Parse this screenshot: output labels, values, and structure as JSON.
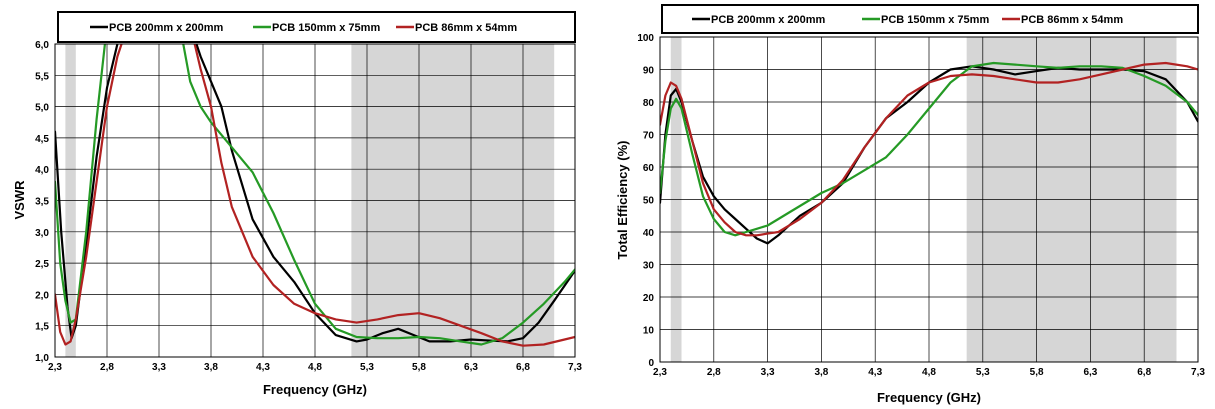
{
  "chart_data": [
    {
      "type": "line",
      "title": "",
      "xlabel": "Frequency (GHz)",
      "ylabel": "VSWR",
      "xlim": [
        2.3,
        7.3
      ],
      "ylim": [
        1.0,
        6.0
      ],
      "x_ticks": [
        2.3,
        2.8,
        3.3,
        3.8,
        4.3,
        4.8,
        5.3,
        5.8,
        6.3,
        6.8,
        7.3
      ],
      "x_tick_labels": [
        "2,3",
        "2,8",
        "3,3",
        "3,8",
        "4,3",
        "4,8",
        "5,3",
        "5,8",
        "6,3",
        "6,8",
        "7,3"
      ],
      "y_ticks": [
        1.0,
        1.5,
        2.0,
        2.5,
        3.0,
        3.5,
        4.0,
        4.5,
        5.0,
        5.5,
        6.0
      ],
      "y_tick_labels": [
        "1,0",
        "1,5",
        "2,0",
        "2,5",
        "3,0",
        "3,5",
        "4,0",
        "4,5",
        "5,0",
        "5,5",
        "6,0"
      ],
      "grid": true,
      "legend_position": "top",
      "shaded_bands": [
        [
          2.4,
          2.5
        ],
        [
          5.15,
          7.1
        ]
      ],
      "series": [
        {
          "name": "PCB 200mm x 200mm",
          "color": "#000000",
          "x": [
            2.3,
            2.36,
            2.42,
            2.46,
            2.5,
            2.6,
            2.7,
            2.8,
            2.9,
            3.0,
            3.6,
            3.7,
            3.8,
            3.9,
            4.0,
            4.2,
            4.4,
            4.6,
            4.8,
            5.0,
            5.2,
            5.3,
            5.45,
            5.6,
            5.75,
            5.9,
            6.1,
            6.3,
            6.5,
            6.65,
            6.8,
            6.95,
            7.1,
            7.3
          ],
          "y": [
            4.6,
            3.0,
            1.8,
            1.3,
            1.5,
            2.8,
            4.2,
            5.3,
            6.0,
            6.3,
            6.3,
            5.8,
            5.4,
            5.0,
            4.3,
            3.2,
            2.6,
            2.2,
            1.7,
            1.35,
            1.25,
            1.28,
            1.38,
            1.45,
            1.35,
            1.25,
            1.25,
            1.28,
            1.26,
            1.25,
            1.3,
            1.55,
            1.9,
            2.38
          ]
        },
        {
          "name": "PCB 150mm x 75mm",
          "color": "#259a25",
          "x": [
            2.3,
            2.35,
            2.4,
            2.45,
            2.5,
            2.6,
            2.7,
            2.8,
            3.5,
            3.6,
            3.7,
            3.8,
            3.9,
            4.0,
            4.2,
            4.4,
            4.6,
            4.8,
            5.0,
            5.2,
            5.4,
            5.6,
            5.8,
            6.0,
            6.2,
            6.4,
            6.6,
            6.8,
            7.0,
            7.2,
            7.3
          ],
          "y": [
            3.8,
            2.5,
            1.9,
            1.55,
            1.6,
            3.0,
            4.8,
            6.3,
            6.3,
            5.4,
            5.0,
            4.75,
            4.55,
            4.35,
            3.95,
            3.3,
            2.55,
            1.85,
            1.45,
            1.32,
            1.3,
            1.3,
            1.32,
            1.3,
            1.25,
            1.2,
            1.3,
            1.55,
            1.85,
            2.2,
            2.4
          ]
        },
        {
          "name": "PCB 86mm x 54mm",
          "color": "#b22222",
          "x": [
            2.3,
            2.35,
            2.4,
            2.45,
            2.5,
            2.6,
            2.7,
            2.8,
            2.9,
            3.0,
            3.6,
            3.7,
            3.8,
            3.9,
            4.0,
            4.2,
            4.4,
            4.6,
            4.8,
            5.0,
            5.2,
            5.4,
            5.6,
            5.8,
            6.0,
            6.2,
            6.4,
            6.6,
            6.8,
            7.0,
            7.2,
            7.3
          ],
          "y": [
            2.0,
            1.4,
            1.2,
            1.25,
            1.6,
            2.6,
            3.8,
            5.0,
            5.8,
            6.3,
            6.3,
            5.6,
            5.0,
            4.1,
            3.4,
            2.6,
            2.15,
            1.85,
            1.7,
            1.6,
            1.55,
            1.6,
            1.67,
            1.7,
            1.62,
            1.5,
            1.38,
            1.25,
            1.18,
            1.2,
            1.28,
            1.32
          ]
        }
      ]
    },
    {
      "type": "line",
      "title": "",
      "xlabel": "Frequency (GHz)",
      "ylabel": "Total  Efficiency (%)",
      "xlim": [
        2.3,
        7.3
      ],
      "ylim": [
        0,
        100
      ],
      "x_ticks": [
        2.3,
        2.8,
        3.3,
        3.8,
        4.3,
        4.8,
        5.3,
        5.8,
        6.3,
        6.8,
        7.3
      ],
      "x_tick_labels": [
        "2,3",
        "2,8",
        "3,3",
        "3,8",
        "4,3",
        "4,8",
        "5,3",
        "5,8",
        "6,3",
        "6,8",
        "7,3"
      ],
      "y_ticks": [
        0,
        10,
        20,
        30,
        40,
        50,
        60,
        70,
        80,
        90,
        100
      ],
      "y_tick_labels": [
        "0",
        "10",
        "20",
        "30",
        "40",
        "50",
        "60",
        "70",
        "80",
        "90",
        "100"
      ],
      "grid": true,
      "legend_position": "top",
      "shaded_bands": [
        [
          2.4,
          2.5
        ],
        [
          5.15,
          7.1
        ]
      ],
      "series": [
        {
          "name": "PCB 200mm x 200mm",
          "color": "#000000",
          "x": [
            2.3,
            2.35,
            2.4,
            2.45,
            2.5,
            2.6,
            2.7,
            2.8,
            2.9,
            3.0,
            3.1,
            3.2,
            3.3,
            3.4,
            3.5,
            3.6,
            3.8,
            4.0,
            4.2,
            4.4,
            4.6,
            4.8,
            5.0,
            5.2,
            5.4,
            5.6,
            5.8,
            6.0,
            6.2,
            6.4,
            6.6,
            6.8,
            7.0,
            7.2,
            7.3
          ],
          "y": [
            49,
            70,
            82,
            84,
            80,
            68,
            57,
            51,
            47,
            44,
            41,
            38,
            36.5,
            39,
            42,
            45,
            49,
            55,
            66,
            75,
            80,
            86,
            90,
            91,
            90,
            88.5,
            89.5,
            90.5,
            90,
            90,
            90,
            89.5,
            87,
            80,
            74
          ]
        },
        {
          "name": "PCB 150mm x 75mm",
          "color": "#259a25",
          "x": [
            2.3,
            2.35,
            2.4,
            2.45,
            2.5,
            2.6,
            2.7,
            2.8,
            2.9,
            3.0,
            3.1,
            3.2,
            3.3,
            3.4,
            3.5,
            3.6,
            3.8,
            4.0,
            4.2,
            4.4,
            4.6,
            4.8,
            5.0,
            5.2,
            5.4,
            5.6,
            5.8,
            6.0,
            6.2,
            6.4,
            6.6,
            6.8,
            7.0,
            7.2,
            7.3
          ],
          "y": [
            52,
            68,
            78,
            81,
            78,
            64,
            51,
            44,
            40,
            39,
            40,
            41,
            42,
            44,
            46,
            48,
            52,
            55,
            59,
            63,
            70,
            78,
            86,
            91,
            92,
            91.5,
            91,
            90.5,
            91,
            91,
            90.5,
            88,
            85,
            80,
            76
          ]
        },
        {
          "name": "PCB 86mm x 54mm",
          "color": "#b22222",
          "x": [
            2.3,
            2.35,
            2.4,
            2.45,
            2.5,
            2.6,
            2.7,
            2.8,
            2.9,
            3.0,
            3.1,
            3.2,
            3.3,
            3.4,
            3.6,
            3.8,
            4.0,
            4.2,
            4.4,
            4.6,
            4.8,
            5.0,
            5.2,
            5.4,
            5.6,
            5.8,
            6.0,
            6.2,
            6.4,
            6.6,
            6.8,
            7.0,
            7.2,
            7.3
          ],
          "y": [
            73,
            82,
            86,
            85,
            81,
            68,
            55,
            47,
            43,
            40,
            39,
            39,
            39.5,
            40,
            44,
            49,
            56,
            66,
            75,
            82,
            86,
            88,
            88.5,
            88,
            87,
            86,
            86,
            87,
            88.5,
            90,
            91.5,
            92,
            91,
            90
          ]
        }
      ]
    }
  ]
}
